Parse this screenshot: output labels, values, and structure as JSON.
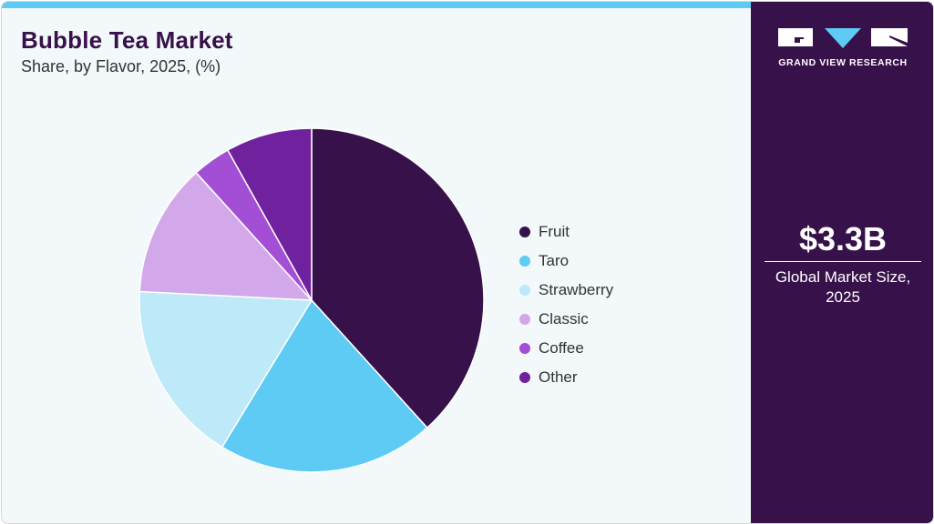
{
  "header": {
    "title": "Bubble Tea Market",
    "subtitle": "Share, by Flavor, 2025, (%)"
  },
  "sidebar": {
    "logo_text": "GRAND VIEW RESEARCH",
    "market_value": "$3.3B",
    "market_caption_line1": "Global Market Size,",
    "market_caption_line2": "2025"
  },
  "colors": {
    "accent_bar": "#5ecbf5",
    "sidebar_bg": "#37114a",
    "card_bg": "#f3f8fb"
  },
  "legend": [
    {
      "label": "Fruit",
      "color": "#37114a"
    },
    {
      "label": "Taro",
      "color": "#5ecbf5"
    },
    {
      "label": "Strawberry",
      "color": "#bde9f8"
    },
    {
      "label": "Classic",
      "color": "#d3a8eb"
    },
    {
      "label": "Coffee",
      "color": "#a24fd6"
    },
    {
      "label": "Other",
      "color": "#70219e"
    }
  ],
  "chart_data": {
    "type": "pie",
    "title": "Bubble Tea Market",
    "subtitle": "Share, by Flavor, 2025, (%)",
    "categories": [
      "Fruit",
      "Taro",
      "Strawberry",
      "Classic",
      "Coffee",
      "Other"
    ],
    "values": [
      38.3,
      20.4,
      17.1,
      12.5,
      3.6,
      8.1
    ],
    "colors": [
      "#37114a",
      "#5ecbf5",
      "#bde9f8",
      "#d3a8eb",
      "#a24fd6",
      "#70219e"
    ],
    "start_angle": "12 o'clock, clockwise",
    "legend_position": "right"
  }
}
